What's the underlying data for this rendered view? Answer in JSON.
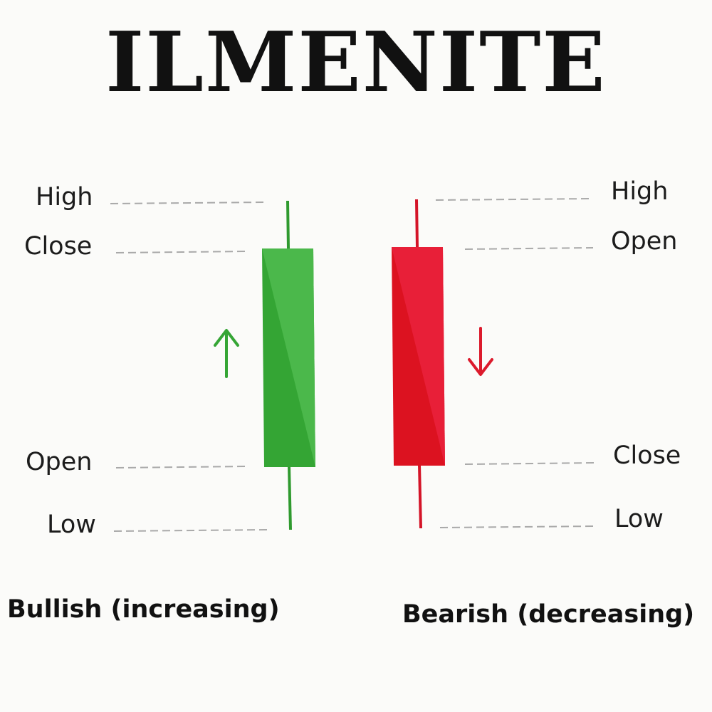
{
  "title": "ILMENITE",
  "colors": {
    "bullish_body": "#3aa83a",
    "bullish_body_light": "#4bb84b",
    "bullish_wick": "#2f9a2f",
    "bearish_body": "#dc1225",
    "bearish_body_light": "#e9233a",
    "bearish_wick": "#d41428",
    "guide": "#a9a9a9",
    "text": "#1c1c1c"
  },
  "bullish": {
    "caption": "Bullish (increasing)",
    "labels": {
      "high": "High",
      "close": "Close",
      "open": "Open",
      "low": "Low"
    },
    "arrow_icon": "arrow-up-icon"
  },
  "bearish": {
    "caption": "Bearish (decreasing)",
    "labels": {
      "high": "High",
      "open": "Open",
      "close": "Close",
      "low": "Low"
    },
    "arrow_icon": "arrow-down-icon"
  }
}
